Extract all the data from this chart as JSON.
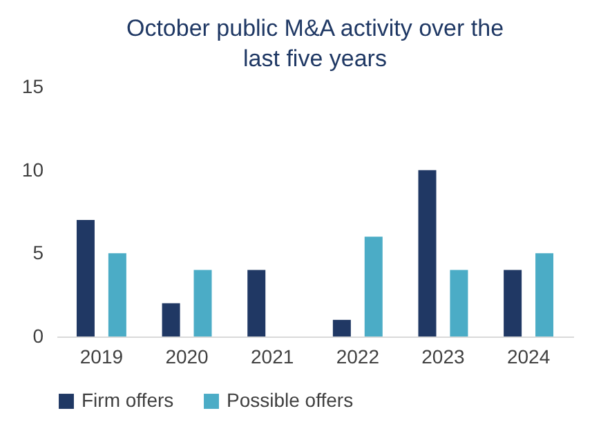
{
  "chart_data": {
    "type": "bar",
    "title": "October public M&A activity over the last five years",
    "categories": [
      "2019",
      "2020",
      "2021",
      "2022",
      "2023",
      "2024"
    ],
    "series": [
      {
        "name": "Firm offers",
        "color": "#203864",
        "values": [
          7,
          2,
          4,
          1,
          10,
          4
        ]
      },
      {
        "name": "Possible offers",
        "color": "#4bacc6",
        "values": [
          5,
          4,
          0,
          6,
          4,
          5
        ]
      }
    ],
    "ylim": [
      0,
      15
    ],
    "yticks": [
      0,
      5,
      10,
      15
    ],
    "grid": false,
    "legend": "bottom"
  }
}
